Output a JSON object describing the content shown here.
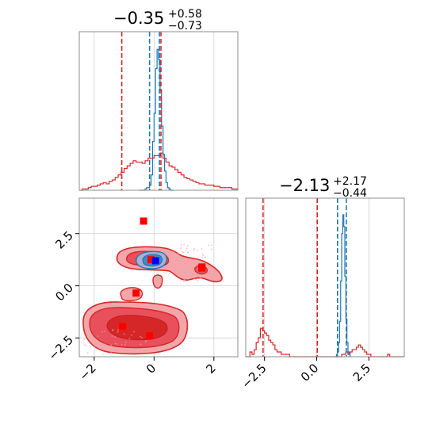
{
  "chart_data": {
    "type": "corner",
    "grid": true,
    "colors": {
      "red": "#d62728",
      "blue": "#1f77b4",
      "marker_red": "#ff0000",
      "marker_blue": "#0000ff"
    },
    "parameters": [
      {
        "title_main": "−0.35",
        "title_plus": "+0.58",
        "title_minus": "−0.73",
        "xlim": [
          -2.5,
          2.8
        ],
        "ticks": [
          -2,
          0,
          2
        ],
        "tick_labels": [
          "−2",
          "0",
          "2"
        ],
        "red_quantiles": [
          -1.08,
          0.23
        ],
        "blue_quantiles": [
          -0.15,
          0.18
        ],
        "red_hist": {
          "edges_start": -2.5,
          "bin_width": 0.1,
          "counts": [
            0,
            1,
            1,
            2,
            3,
            3,
            4,
            5,
            6,
            5,
            7,
            8,
            10,
            12,
            14,
            17,
            19,
            21,
            23,
            22,
            22,
            21,
            23,
            25,
            25,
            27,
            27,
            29,
            25,
            22,
            19,
            18,
            16,
            14,
            12,
            10,
            9,
            8,
            7,
            6,
            5,
            5,
            4,
            4,
            4,
            3,
            3,
            2,
            2,
            2,
            2,
            1,
            1
          ]
        },
        "blue_hist": {
          "edges_start": -0.5,
          "bin_width": 0.05,
          "counts": [
            0,
            0,
            0,
            0,
            1,
            2,
            2,
            4,
            12,
            38,
            60,
            95,
            110,
            102,
            78,
            50,
            28,
            15,
            6,
            2,
            1,
            0,
            0
          ]
        }
      },
      {
        "title_main": "−2.13",
        "title_plus": "+2.17",
        "title_minus": "−0.44",
        "xlim": [
          -3.4,
          4.2
        ],
        "ylim": [
          -3.4,
          4.2
        ],
        "ticks": [
          -2.5,
          0.0,
          2.5
        ],
        "tick_labels": [
          "−2.5",
          "0.0",
          "2.5"
        ],
        "red_quantiles": [
          -2.57,
          0.03
        ],
        "blue_quantiles": [
          1.0,
          1.42
        ],
        "red_hist": {
          "edges_start": -3.4,
          "bin_width": 0.1,
          "counts": [
            0,
            0,
            2,
            1,
            3,
            6,
            8,
            12,
            11,
            10,
            9,
            7,
            6,
            5,
            3,
            2,
            2,
            1,
            1,
            1,
            1,
            0,
            0,
            0,
            0,
            0,
            0,
            0,
            0,
            0,
            0,
            0,
            0,
            0,
            0,
            0,
            0,
            0,
            0,
            0,
            0,
            0,
            0,
            0,
            0,
            0,
            1,
            1,
            2,
            1,
            2,
            3,
            3,
            4,
            5,
            4,
            3,
            2,
            1,
            1,
            0,
            0,
            0,
            0,
            0,
            0,
            0,
            0,
            1,
            0,
            0,
            0,
            0,
            0,
            0,
            0
          ]
        },
        "blue_hist": {
          "edges_start": 0.9,
          "bin_width": 0.05,
          "counts": [
            0,
            1,
            2,
            6,
            15,
            32,
            52,
            60,
            55,
            34,
            16,
            6,
            2,
            1,
            0
          ]
        }
      }
    ],
    "scatter_markers": {
      "red": [
        [
          -0.35,
          3.1
        ],
        [
          -0.6,
          -0.35
        ],
        [
          -1.05,
          -1.95
        ],
        [
          -0.15,
          -2.4
        ],
        [
          -0.1,
          1.25
        ],
        [
          1.6,
          0.85
        ],
        [
          1.6,
          0.9
        ]
      ],
      "blue": [
        [
          0.05,
          1.2
        ]
      ]
    }
  }
}
